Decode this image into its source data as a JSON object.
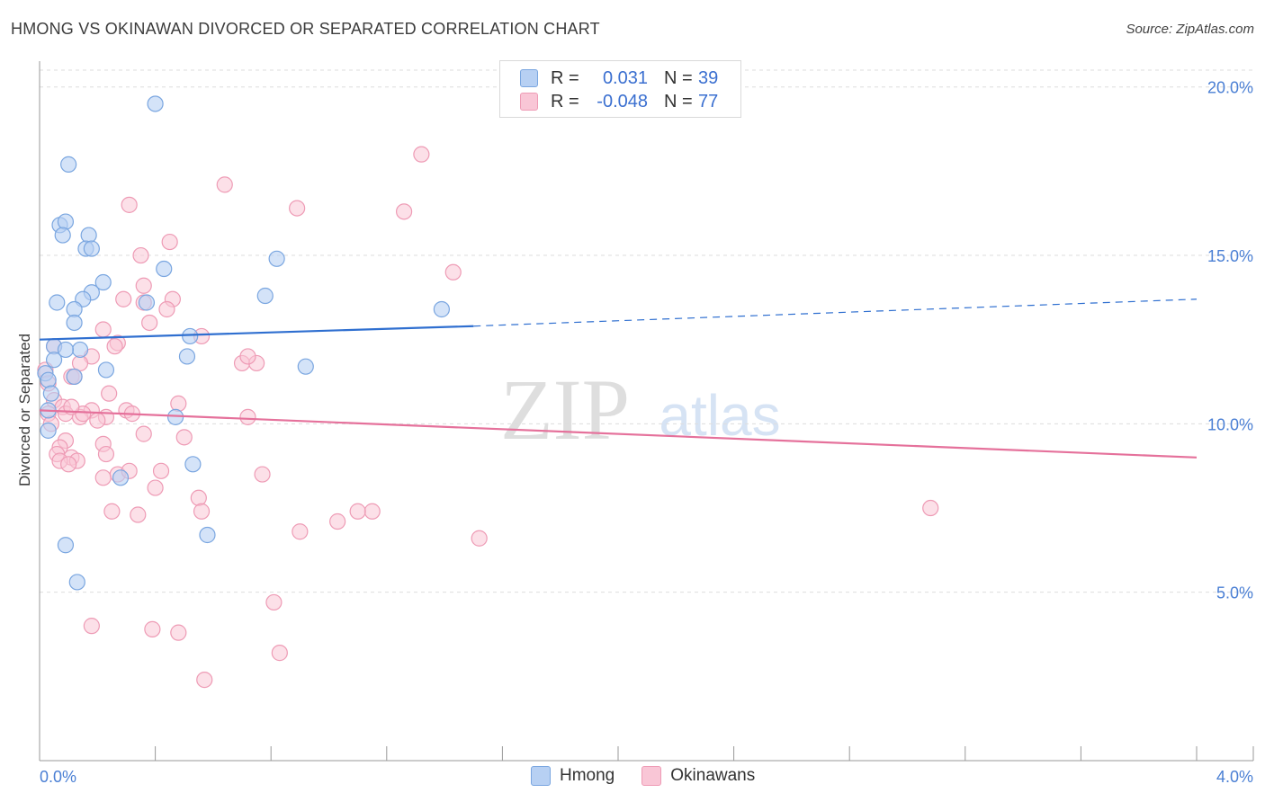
{
  "header": {
    "title": "HMONG VS OKINAWAN DIVORCED OR SEPARATED CORRELATION CHART",
    "source": "Source: ZipAtlas.com"
  },
  "watermark": {
    "zip": "ZIP",
    "atlas": "atlas"
  },
  "legend": {
    "rows": [
      {
        "r_label": "R =",
        "r_value": "0.031",
        "n_label": "N =",
        "n_value": "39"
      },
      {
        "r_label": "R =",
        "r_value": "-0.048",
        "n_label": "N =",
        "n_value": "77"
      }
    ]
  },
  "bottom_legend": {
    "hmong": "Hmong",
    "okinawans": "Okinawans"
  },
  "colors": {
    "hmong_fill": "#b7d0f3",
    "hmong_stroke": "#7aa6e0",
    "hmong_line": "#2f6fd0",
    "okinawan_fill": "#f9c6d6",
    "okinawan_stroke": "#ee9bb5",
    "okinawan_line": "#e5719b",
    "grid": "#dddddd",
    "tick_label": "#4a7fd4"
  },
  "chart_data": {
    "type": "scatter",
    "title": "HMONG VS OKINAWAN DIVORCED OR SEPARATED CORRELATION CHART",
    "xlabel": "",
    "ylabel": "Divorced or Separated",
    "xlim": [
      0,
      4.0
    ],
    "ylim": [
      0,
      20.5
    ],
    "x_tick_labels": [
      "0.0%",
      "4.0%"
    ],
    "y_ticks": [
      5,
      10,
      15,
      20
    ],
    "y_tick_labels": [
      "5.0%",
      "10.0%",
      "15.0%",
      "20.0%"
    ],
    "grid": true,
    "series": [
      {
        "name": "Hmong",
        "r": 0.031,
        "n": 39,
        "trend": {
          "x0": 0.0,
          "y0": 12.5,
          "x1": 1.5,
          "y1": 12.9,
          "dashed_to_x": 4.0,
          "dashed_to_y": 13.7
        },
        "points": [
          [
            0.4,
            19.5
          ],
          [
            0.1,
            17.7
          ],
          [
            0.07,
            15.9
          ],
          [
            0.09,
            16.0
          ],
          [
            0.08,
            15.6
          ],
          [
            0.17,
            15.6
          ],
          [
            0.16,
            15.2
          ],
          [
            0.18,
            15.2
          ],
          [
            0.82,
            14.9
          ],
          [
            0.43,
            14.6
          ],
          [
            0.22,
            14.2
          ],
          [
            0.18,
            13.9
          ],
          [
            0.06,
            13.6
          ],
          [
            0.15,
            13.7
          ],
          [
            0.12,
            13.4
          ],
          [
            0.37,
            13.6
          ],
          [
            0.78,
            13.8
          ],
          [
            1.39,
            13.4
          ],
          [
            0.12,
            13.0
          ],
          [
            0.52,
            12.6
          ],
          [
            0.05,
            12.3
          ],
          [
            0.14,
            12.2
          ],
          [
            0.09,
            12.2
          ],
          [
            0.51,
            12.0
          ],
          [
            0.05,
            11.9
          ],
          [
            0.23,
            11.6
          ],
          [
            0.92,
            11.7
          ],
          [
            0.02,
            11.5
          ],
          [
            0.12,
            11.4
          ],
          [
            0.03,
            11.3
          ],
          [
            0.04,
            10.9
          ],
          [
            0.03,
            10.4
          ],
          [
            0.47,
            10.2
          ],
          [
            0.03,
            9.8
          ],
          [
            0.53,
            8.8
          ],
          [
            0.28,
            8.4
          ],
          [
            0.58,
            6.7
          ],
          [
            0.09,
            6.4
          ],
          [
            0.13,
            5.3
          ]
        ]
      },
      {
        "name": "Okinawans",
        "r": -0.048,
        "n": 77,
        "trend": {
          "x0": 0.0,
          "y0": 10.4,
          "x1": 4.0,
          "y1": 9.0
        },
        "points": [
          [
            1.32,
            18.0
          ],
          [
            0.64,
            17.1
          ],
          [
            0.31,
            16.5
          ],
          [
            0.89,
            16.4
          ],
          [
            1.26,
            16.3
          ],
          [
            0.45,
            15.4
          ],
          [
            0.35,
            15.0
          ],
          [
            1.43,
            14.5
          ],
          [
            0.36,
            14.1
          ],
          [
            0.29,
            13.7
          ],
          [
            0.46,
            13.7
          ],
          [
            0.36,
            13.6
          ],
          [
            0.44,
            13.4
          ],
          [
            0.38,
            13.0
          ],
          [
            0.22,
            12.8
          ],
          [
            0.56,
            12.6
          ],
          [
            0.27,
            12.4
          ],
          [
            0.05,
            12.3
          ],
          [
            0.26,
            12.3
          ],
          [
            0.18,
            12.0
          ],
          [
            0.14,
            11.8
          ],
          [
            0.7,
            11.8
          ],
          [
            0.75,
            11.8
          ],
          [
            0.02,
            11.6
          ],
          [
            0.11,
            11.4
          ],
          [
            0.03,
            11.2
          ],
          [
            0.12,
            11.4
          ],
          [
            0.24,
            10.9
          ],
          [
            0.05,
            10.7
          ],
          [
            0.08,
            10.5
          ],
          [
            0.48,
            10.6
          ],
          [
            0.18,
            10.4
          ],
          [
            0.3,
            10.4
          ],
          [
            0.32,
            10.3
          ],
          [
            0.03,
            10.3
          ],
          [
            0.09,
            10.3
          ],
          [
            0.14,
            10.2
          ],
          [
            0.15,
            10.3
          ],
          [
            0.23,
            10.2
          ],
          [
            0.2,
            10.1
          ],
          [
            0.72,
            10.2
          ],
          [
            0.04,
            10.0
          ],
          [
            0.36,
            9.7
          ],
          [
            0.5,
            9.6
          ],
          [
            0.09,
            9.5
          ],
          [
            0.07,
            9.3
          ],
          [
            0.22,
            9.4
          ],
          [
            0.06,
            9.1
          ],
          [
            0.23,
            9.1
          ],
          [
            0.11,
            9.0
          ],
          [
            0.07,
            8.9
          ],
          [
            0.13,
            8.9
          ],
          [
            0.1,
            8.8
          ],
          [
            0.27,
            8.5
          ],
          [
            0.31,
            8.6
          ],
          [
            0.42,
            8.6
          ],
          [
            0.77,
            8.5
          ],
          [
            0.22,
            8.4
          ],
          [
            0.4,
            8.1
          ],
          [
            0.55,
            7.8
          ],
          [
            0.56,
            7.4
          ],
          [
            0.25,
            7.4
          ],
          [
            0.34,
            7.3
          ],
          [
            1.15,
            7.4
          ],
          [
            1.1,
            7.4
          ],
          [
            1.03,
            7.1
          ],
          [
            3.08,
            7.5
          ],
          [
            0.9,
            6.8
          ],
          [
            1.52,
            6.6
          ],
          [
            0.81,
            4.7
          ],
          [
            0.18,
            4.0
          ],
          [
            0.39,
            3.9
          ],
          [
            0.48,
            3.8
          ],
          [
            0.83,
            3.2
          ],
          [
            0.57,
            2.4
          ],
          [
            0.72,
            12.0
          ],
          [
            0.11,
            10.5
          ]
        ]
      }
    ]
  }
}
